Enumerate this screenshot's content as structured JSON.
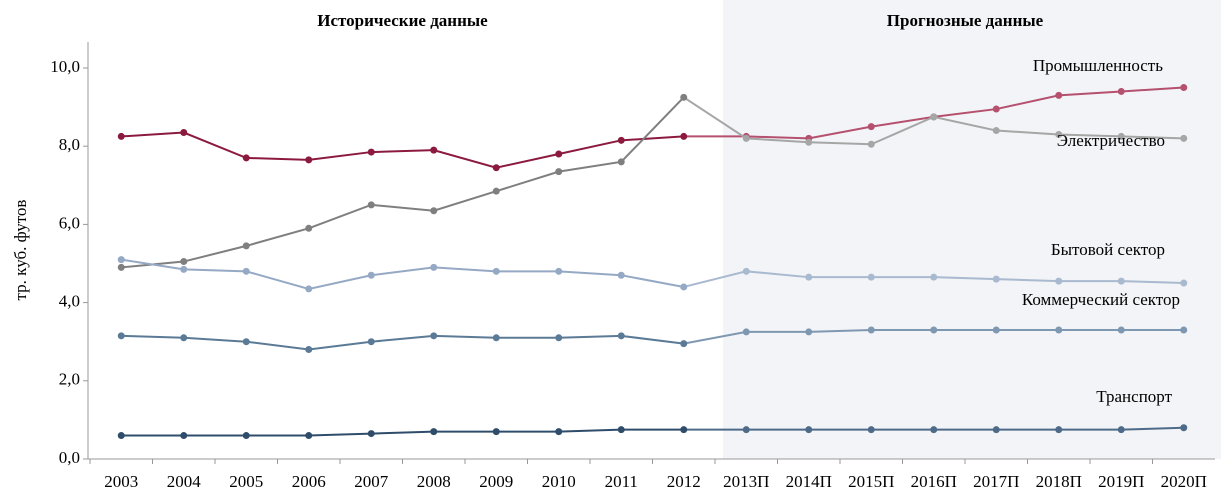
{
  "chart_data": {
    "type": "line",
    "ylabel": "тр. куб. футов",
    "categories": [
      "2003",
      "2004",
      "2005",
      "2006",
      "2007",
      "2008",
      "2009",
      "2010",
      "2011",
      "2012",
      "2013П",
      "2014П",
      "2015П",
      "2016П",
      "2017П",
      "2018П",
      "2019П",
      "2020П"
    ],
    "sections": [
      {
        "title": "Исторические данные",
        "start": "2003",
        "end": "2012"
      },
      {
        "title": "Прогнозные данные",
        "start": "2013П",
        "end": "2020П",
        "shade": "#f2f4f7"
      }
    ],
    "series": [
      {
        "name": "Промышленность",
        "color": "#8b1a3e",
        "forecast_color": "#b5506e",
        "values": [
          8.25,
          8.35,
          7.7,
          7.65,
          7.85,
          7.9,
          7.45,
          7.8,
          8.15,
          8.25,
          8.25,
          8.2,
          8.5,
          8.75,
          8.95,
          9.3,
          9.4,
          9.5
        ]
      },
      {
        "name": "Электричество",
        "color": "#7f7f7f",
        "forecast_color": "#a6a6a6",
        "values": [
          4.9,
          5.05,
          5.45,
          5.9,
          6.5,
          6.35,
          6.85,
          7.35,
          7.6,
          9.25,
          8.2,
          8.1,
          8.05,
          8.75,
          8.4,
          8.3,
          8.25,
          8.2
        ]
      },
      {
        "name": "Бытовой сектор",
        "color": "#95a9c5",
        "forecast_color": "#a9b9cf",
        "values": [
          5.1,
          4.85,
          4.8,
          4.35,
          4.7,
          4.9,
          4.8,
          4.8,
          4.7,
          4.4,
          4.8,
          4.65,
          4.65,
          4.65,
          4.6,
          4.55,
          4.55,
          4.5
        ]
      },
      {
        "name": "Коммерческий сектор",
        "color": "#5b7a96",
        "forecast_color": "#7f98b2",
        "values": [
          3.15,
          3.1,
          3.0,
          2.8,
          3.0,
          3.15,
          3.1,
          3.1,
          3.15,
          2.95,
          3.25,
          3.25,
          3.3,
          3.3,
          3.3,
          3.3,
          3.3,
          3.3
        ]
      },
      {
        "name": "Транспорт",
        "color": "#2f4d6b",
        "forecast_color": "#4d6b88",
        "values": [
          0.6,
          0.6,
          0.6,
          0.6,
          0.65,
          0.7,
          0.7,
          0.7,
          0.75,
          0.75,
          0.75,
          0.75,
          0.75,
          0.75,
          0.75,
          0.75,
          0.75,
          0.8
        ]
      }
    ],
    "ylim": [
      0,
      10
    ],
    "yticks": [
      {
        "value": 0,
        "label": "0,0"
      },
      {
        "value": 2,
        "label": "2,0"
      },
      {
        "value": 4,
        "label": "4,0"
      },
      {
        "value": 6,
        "label": "6,0"
      },
      {
        "value": 8,
        "label": "8,0"
      },
      {
        "value": 10,
        "label": "10,0"
      }
    ],
    "grid": false
  }
}
